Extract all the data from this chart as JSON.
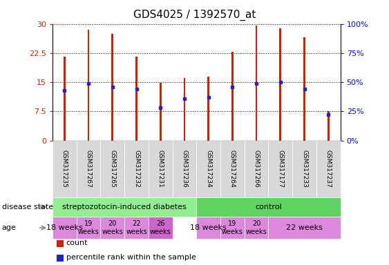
{
  "title": "GDS4025 / 1392570_at",
  "samples": [
    "GSM317235",
    "GSM317267",
    "GSM317265",
    "GSM317232",
    "GSM317231",
    "GSM317236",
    "GSM317234",
    "GSM317264",
    "GSM317266",
    "GSM317177",
    "GSM317233",
    "GSM317237"
  ],
  "counts": [
    21.5,
    28.5,
    27.5,
    21.5,
    14.8,
    16.0,
    16.5,
    22.8,
    29.5,
    28.8,
    26.5,
    7.5
  ],
  "percentile_ranks": [
    43,
    49,
    46,
    44,
    28,
    36,
    37,
    46,
    49,
    50,
    44,
    22
  ],
  "ylim_left": [
    0,
    30
  ],
  "ylim_right": [
    0,
    100
  ],
  "yticks_left": [
    0,
    7.5,
    15,
    22.5,
    30
  ],
  "yticks_right": [
    0,
    25,
    50,
    75,
    100
  ],
  "ytick_labels_left": [
    "0",
    "7.5",
    "15",
    "22.5",
    "30"
  ],
  "ytick_labels_right": [
    "0%",
    "25%",
    "50%",
    "75%",
    "100%"
  ],
  "bar_color": "#CC2200",
  "pct_color": "#2222CC",
  "n_samples": 12,
  "bar_width": 0.08,
  "background_color": "#ffffff",
  "sample_bg_color": "#D8D8D8",
  "disease_groups": [
    {
      "label": "streptozotocin-induced diabetes",
      "start": 0,
      "end": 6,
      "color": "#90EE90"
    },
    {
      "label": "control",
      "start": 6,
      "end": 12,
      "color": "#5FD35F"
    }
  ],
  "age_groups": [
    {
      "label": "18 weeks",
      "start": 0,
      "end": 1,
      "color": "#DD88DD",
      "fontsize": 8,
      "two_line": false
    },
    {
      "label": "19\nweeks",
      "start": 1,
      "end": 2,
      "color": "#DD88DD",
      "fontsize": 7,
      "two_line": true
    },
    {
      "label": "20\nweeks",
      "start": 2,
      "end": 3,
      "color": "#DD88DD",
      "fontsize": 7,
      "two_line": true
    },
    {
      "label": "22\nweeks",
      "start": 3,
      "end": 4,
      "color": "#DD88DD",
      "fontsize": 7,
      "two_line": true
    },
    {
      "label": "26\nweeks",
      "start": 4,
      "end": 5,
      "color": "#CC66CC",
      "fontsize": 7,
      "two_line": true
    },
    {
      "label": "18 weeks",
      "start": 6,
      "end": 7,
      "color": "#DD88DD",
      "fontsize": 8,
      "two_line": false
    },
    {
      "label": "19\nweeks",
      "start": 7,
      "end": 8,
      "color": "#DD88DD",
      "fontsize": 7,
      "two_line": true
    },
    {
      "label": "20\nweeks",
      "start": 8,
      "end": 9,
      "color": "#DD88DD",
      "fontsize": 7,
      "two_line": true
    },
    {
      "label": "22 weeks",
      "start": 9,
      "end": 12,
      "color": "#DD88DD",
      "fontsize": 8,
      "two_line": false
    }
  ],
  "left_labels": [
    {
      "text": "disease state",
      "row": "disease"
    },
    {
      "text": "age",
      "row": "age"
    }
  ],
  "legend": [
    {
      "color": "#CC2200",
      "label": "count"
    },
    {
      "color": "#2222CC",
      "label": "percentile rank within the sample"
    }
  ],
  "title_fontsize": 11,
  "axis_fontsize": 8
}
